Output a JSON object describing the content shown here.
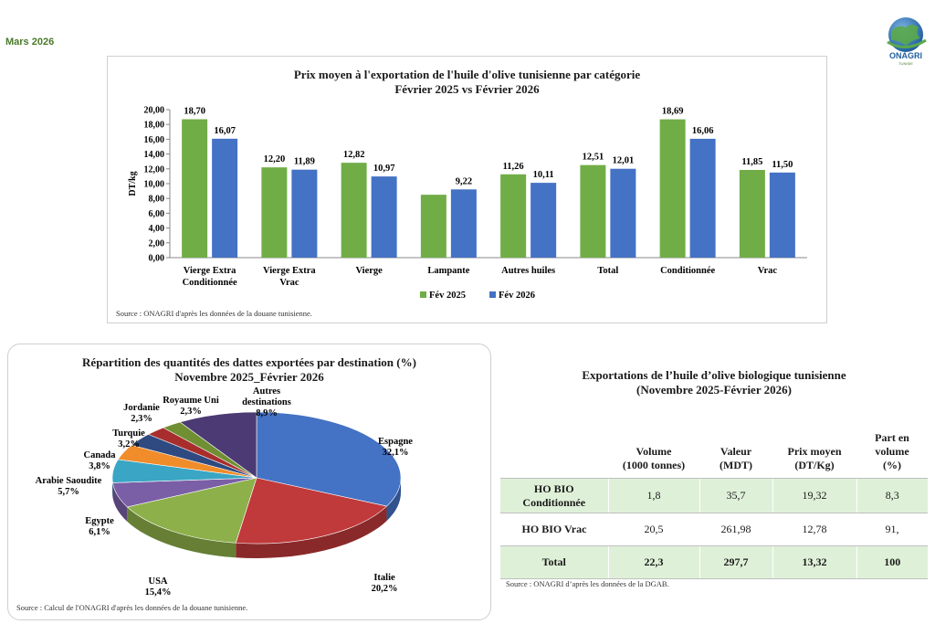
{
  "header": {
    "date": "Mars 2026",
    "logo_text": "ONAGRI",
    "logo_subtext": "TUNISIE"
  },
  "bar_panel": {
    "title_line1": "Prix moyen à l'exportation de l'huile d'olive tunisienne par catégorie",
    "title_line2": "Février  2025 vs Février  2026",
    "source": "Source : ONAGRI  d'après les données de la douane tunisienne."
  },
  "pie_panel": {
    "title_line1": "Répartition des quantités des dattes exportées par destination (%)",
    "title_line2": "Novembre 2025_Février  2026",
    "source": "Source : Calcul  de l'ONAGRI   d'après les données de la douane tunisienne."
  },
  "table_panel": {
    "title_line1": "Exportations de l’huile d’olive biologique tunisienne",
    "title_line2": "(Novembre 2025-Février  2026)",
    "headers": [
      [
        "Volume",
        "(1000 tonnes)"
      ],
      [
        "Valeur",
        "(MDT)"
      ],
      [
        "Prix moyen",
        "(DT/Kg)"
      ],
      [
        "Part en",
        "volume",
        "(%)"
      ]
    ],
    "rows": [
      {
        "label": [
          "HO BIO",
          "Conditionnée"
        ],
        "values": [
          "1,8",
          "35,7",
          "19,32",
          "8,3"
        ]
      },
      {
        "label": [
          "HO BIO Vrac"
        ],
        "values": [
          "20,5",
          "261,98",
          "12,78",
          "91,"
        ]
      },
      {
        "label": [
          "Total"
        ],
        "values": [
          "22,3",
          "297,7",
          "13,32",
          "100"
        ]
      }
    ],
    "source": "Source : ONAGRI  d’après les données de la DGAB."
  },
  "chart_data": [
    {
      "type": "bar",
      "title": "Prix moyen à l'exportation de l'huile d'olive tunisienne par catégorie — Février 2025 vs Février 2026",
      "xlabel": "",
      "ylabel": "DT/kg",
      "ylim": [
        0,
        20
      ],
      "yticks": [
        "0,00",
        "2,00",
        "4,00",
        "6,00",
        "8,00",
        "10,00",
        "12,00",
        "14,00",
        "16,00",
        "18,00",
        "20,00"
      ],
      "categories": [
        [
          "Vierge Extra",
          "Conditionnée"
        ],
        [
          "Vierge Extra",
          "Vrac"
        ],
        [
          "Vierge"
        ],
        [
          "Lampante"
        ],
        [
          "Autres huiles"
        ],
        [
          "Total"
        ],
        [
          "Conditionnée"
        ],
        [
          "Vrac"
        ]
      ],
      "series": [
        {
          "name": "Fév 2025",
          "color": "#70ad47",
          "values": [
            18.7,
            12.2,
            12.82,
            8.5,
            11.26,
            12.51,
            18.69,
            11.85
          ],
          "labels": [
            "18,70",
            "12,20",
            "12,82",
            "",
            "11,26",
            "12,51",
            "18,69",
            "11,85"
          ]
        },
        {
          "name": "Fév 2026",
          "color": "#4472c4",
          "values": [
            16.07,
            11.89,
            10.97,
            9.22,
            10.11,
            12.01,
            16.06,
            11.5
          ],
          "labels": [
            "16,07",
            "11,89",
            "10,97",
            "9,22",
            "10,11",
            "12,01",
            "16,06",
            "11,50"
          ]
        }
      ],
      "legend": "bottom"
    },
    {
      "type": "pie",
      "title": "Répartition des quantités des dattes exportées par destination (%) — Novembre 2025_Février 2026",
      "slices": [
        {
          "name": "Espagne",
          "value": 32.1,
          "label": "32,1%",
          "color": "#4472c4"
        },
        {
          "name": "Italie",
          "value": 20.2,
          "label": "20,2%",
          "color": "#c0393b"
        },
        {
          "name": "USA",
          "value": 15.4,
          "label": "15,4%",
          "color": "#8db04a"
        },
        {
          "name": "Egypte",
          "value": 6.1,
          "label": "6,1%",
          "color": "#7a5fa6"
        },
        {
          "name": "Arabie Saoudite",
          "value": 5.7,
          "label": "5,7%",
          "color": "#3aa5c4"
        },
        {
          "name": "Canada",
          "value": 3.8,
          "label": "3,8%",
          "color": "#f08c2a"
        },
        {
          "name": "Turquie",
          "value": 3.2,
          "label": "3,2%",
          "color": "#2e4a80"
        },
        {
          "name": "Jordanie",
          "value": 2.3,
          "label": "2,3%",
          "color": "#a82e2e"
        },
        {
          "name": "Royaume Uni",
          "value": 2.3,
          "label": "2,3%",
          "color": "#6f8f32"
        },
        {
          "name": "Autres destinations",
          "value": 8.9,
          "label": "8,9%",
          "color": "#4b3a73"
        }
      ]
    }
  ]
}
